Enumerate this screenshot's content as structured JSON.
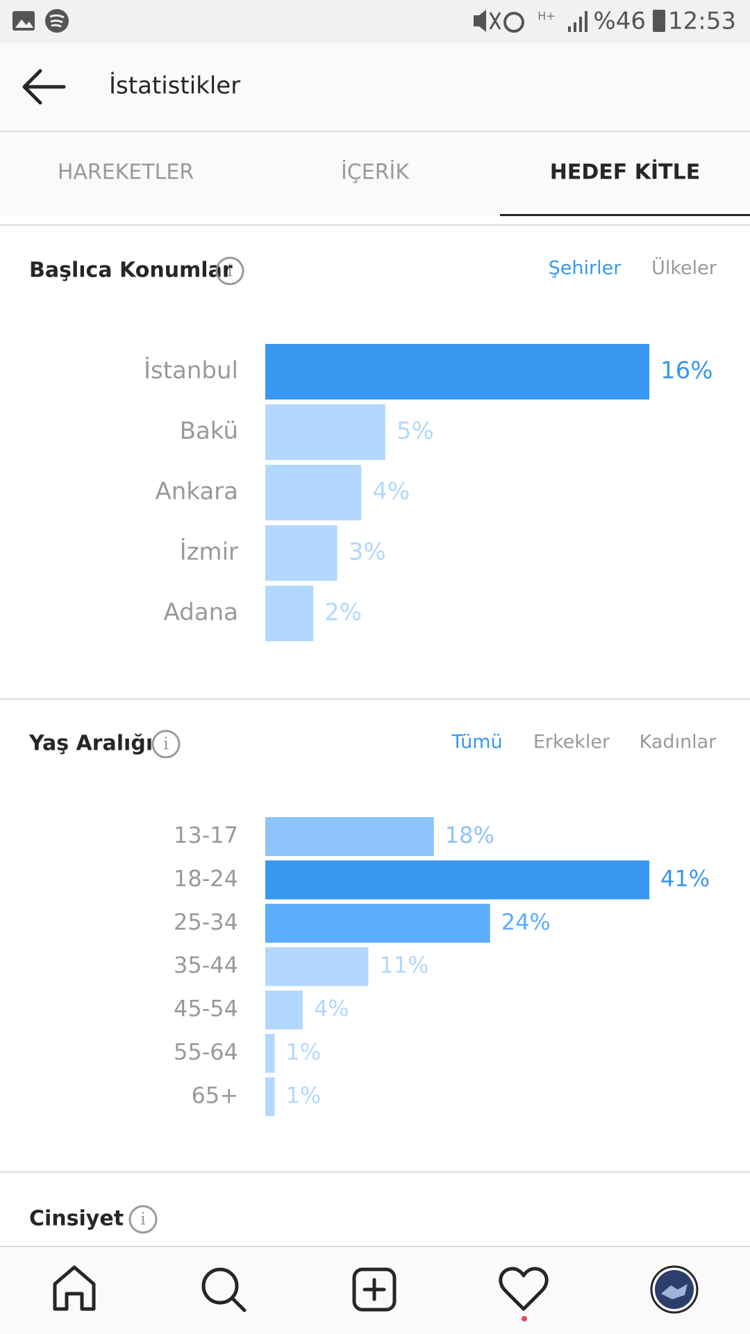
{
  "status_bar": {
    "network": "H+",
    "battery": "%46",
    "time": "12:53"
  },
  "header": {
    "title": "İstatistikler"
  },
  "tabs": [
    "HAREKETLER",
    "İÇERİK",
    "HEDEF KİTLE"
  ],
  "top_locations": {
    "title": "Başlıca Konumlar",
    "filters": [
      "Şehirler",
      "Ülkeler"
    ],
    "chart_data": {
      "type": "bar",
      "orientation": "horizontal",
      "categories": [
        "İstanbul",
        "Bakü",
        "Ankara",
        "İzmir",
        "Adana"
      ],
      "values": [
        16,
        5,
        4,
        3,
        2
      ],
      "value_labels": [
        "16%",
        "5%",
        "4%",
        "3%",
        "2%"
      ],
      "colors": [
        "#3897f0",
        "#b3d8fd",
        "#b3d8fd",
        "#b3d8fd",
        "#b3d8fd"
      ]
    }
  },
  "age_range": {
    "title": "Yaş Aralığı",
    "filters": [
      "Tümü",
      "Erkekler",
      "Kadınlar"
    ],
    "chart_data": {
      "type": "bar",
      "orientation": "horizontal",
      "categories": [
        "13-17",
        "18-24",
        "25-34",
        "35-44",
        "45-54",
        "55-64",
        "65+"
      ],
      "values": [
        18,
        41,
        24,
        11,
        4,
        1,
        1
      ],
      "value_labels": [
        "18%",
        "41%",
        "24%",
        "11%",
        "4%",
        "1%",
        "1%"
      ],
      "colors": [
        "#8cc4fb",
        "#3897f0",
        "#5cadfa",
        "#b3d8fd",
        "#b3d8fd",
        "#b3d8fd",
        "#b3d8fd"
      ]
    }
  },
  "gender": {
    "title": "Cinsiyet"
  }
}
